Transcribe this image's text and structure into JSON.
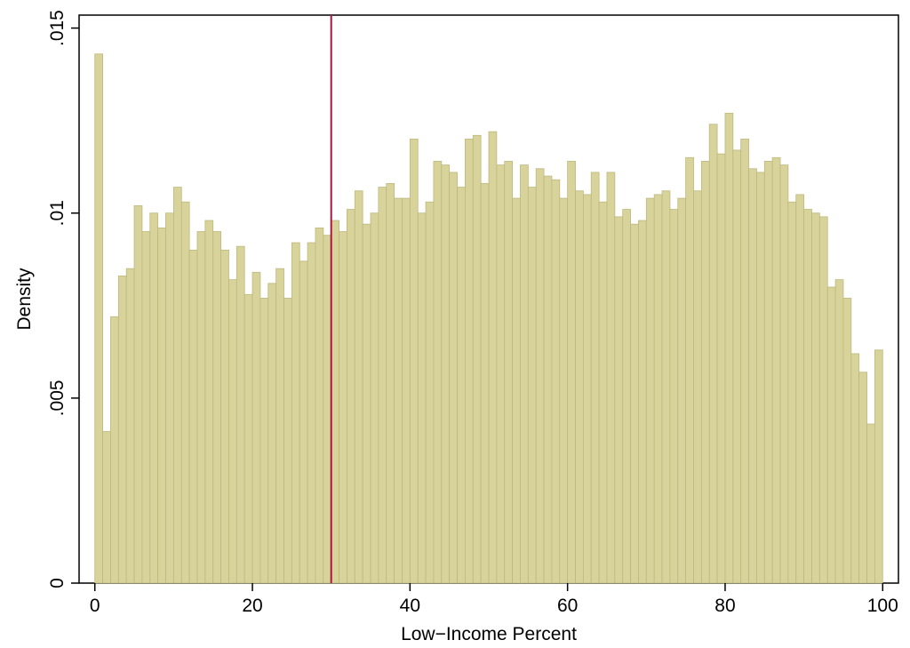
{
  "chart_data": {
    "type": "bar",
    "xlabel": "Low−Income Percent",
    "ylabel": "Density",
    "xlim": [
      -2,
      102
    ],
    "ylim": [
      0,
      0.01535
    ],
    "x_ticks": [
      {
        "value": 0,
        "label": "0"
      },
      {
        "value": 20,
        "label": "20"
      },
      {
        "value": 40,
        "label": "40"
      },
      {
        "value": 60,
        "label": "60"
      },
      {
        "value": 80,
        "label": "80"
      },
      {
        "value": 100,
        "label": "100"
      }
    ],
    "y_ticks": [
      {
        "value": 0,
        "label": "0"
      },
      {
        "value": 0.005,
        "label": ".005"
      },
      {
        "value": 0.01,
        "label": ".01"
      },
      {
        "value": 0.015,
        "label": ".015"
      }
    ],
    "bin_start": 0,
    "bin_width": 1,
    "values": [
      0.0143,
      0.0041,
      0.0072,
      0.0083,
      0.0085,
      0.0102,
      0.0095,
      0.01,
      0.0096,
      0.01,
      0.0107,
      0.0103,
      0.009,
      0.0095,
      0.0098,
      0.0095,
      0.009,
      0.0082,
      0.0091,
      0.0078,
      0.0084,
      0.0077,
      0.0081,
      0.0085,
      0.0077,
      0.0092,
      0.0087,
      0.0092,
      0.0096,
      0.0094,
      0.0098,
      0.0095,
      0.0101,
      0.0106,
      0.0097,
      0.01,
      0.0107,
      0.0108,
      0.0104,
      0.0104,
      0.012,
      0.01,
      0.0103,
      0.0114,
      0.0113,
      0.0111,
      0.0107,
      0.012,
      0.0121,
      0.0108,
      0.0122,
      0.0113,
      0.0114,
      0.0104,
      0.0113,
      0.0107,
      0.0112,
      0.011,
      0.0109,
      0.0104,
      0.0114,
      0.0106,
      0.0105,
      0.0111,
      0.0103,
      0.0111,
      0.0099,
      0.0101,
      0.0097,
      0.0098,
      0.0104,
      0.0105,
      0.0106,
      0.0101,
      0.0104,
      0.0115,
      0.0106,
      0.0114,
      0.0124,
      0.0116,
      0.0127,
      0.0117,
      0.012,
      0.0112,
      0.0111,
      0.0114,
      0.0115,
      0.0113,
      0.0103,
      0.0105,
      0.0101,
      0.01,
      0.0099,
      0.008,
      0.0082,
      0.0077,
      0.0062,
      0.0057,
      0.0043,
      0.0063
    ],
    "bar_color": "#d7d39a",
    "bar_edge_color": "#bdb87e",
    "reference_line": {
      "x": 30,
      "color": "#b0133c"
    },
    "grid": false,
    "legend": "none"
  }
}
